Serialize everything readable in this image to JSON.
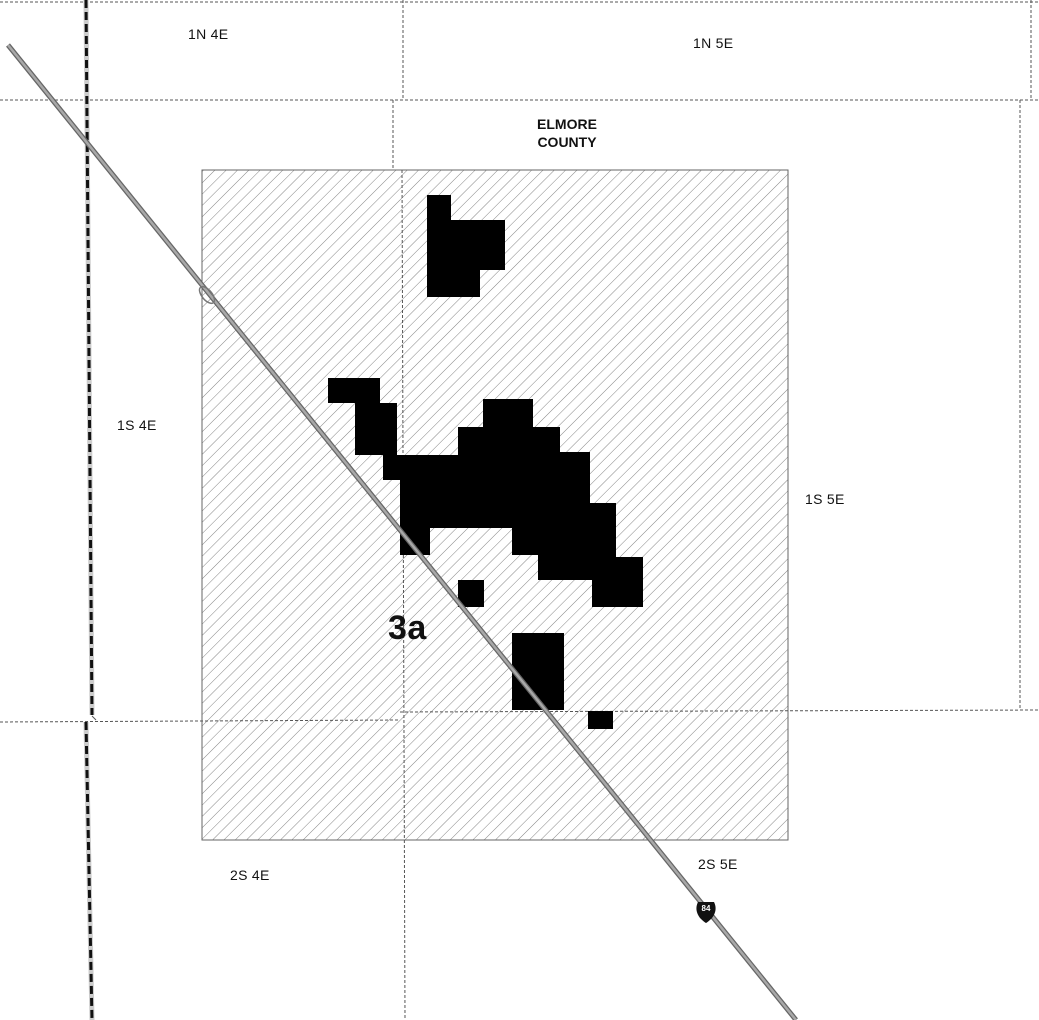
{
  "map": {
    "townships": [
      {
        "id": "t-1n-4e",
        "label": "1N 4E"
      },
      {
        "id": "t-1n-5e",
        "label": "1N 5E"
      },
      {
        "id": "t-1s-4e",
        "label": "1S 4E"
      },
      {
        "id": "t-1s-5e",
        "label": "1S 5E"
      },
      {
        "id": "t-2s-4e",
        "label": "2S 4E"
      },
      {
        "id": "t-2s-5e",
        "label": "2S 5E"
      }
    ],
    "county": {
      "line1": "ELMORE",
      "line2": "COUNTY"
    },
    "area_label": "3a",
    "highway": {
      "shield_number": "84",
      "shield_color": "#111111"
    },
    "colors": {
      "hatch": "#7a7a7a",
      "solid_blocks": "#000000",
      "road": "#8a8a8a",
      "grid": "#555555"
    }
  }
}
